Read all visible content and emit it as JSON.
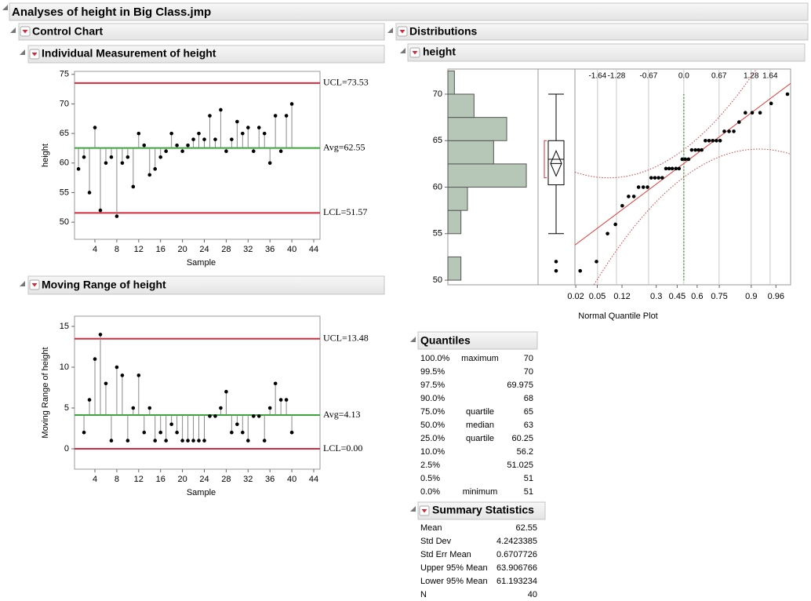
{
  "title": "Analyses of height in Big Class.jmp",
  "control_chart": {
    "title": "Control Chart",
    "individual": {
      "type": "control_chart",
      "title": "Individual Measurement of height",
      "x_label": "Sample",
      "y_label": "height",
      "x": [
        1,
        2,
        3,
        4,
        5,
        6,
        7,
        8,
        9,
        10,
        11,
        12,
        13,
        14,
        15,
        16,
        17,
        18,
        19,
        20,
        21,
        22,
        23,
        24,
        25,
        26,
        27,
        28,
        29,
        30,
        31,
        32,
        33,
        34,
        35,
        36,
        37,
        38,
        39,
        40
      ],
      "values": [
        59,
        61,
        55,
        66,
        52,
        60,
        61,
        51,
        60,
        61,
        56,
        65,
        63,
        58,
        59,
        61,
        62,
        65,
        63,
        62,
        63,
        64,
        65,
        64,
        68,
        64,
        69,
        62,
        64,
        67,
        65,
        66,
        62,
        66,
        65,
        60,
        68,
        62,
        68,
        70
      ],
      "xlim": [
        0.27,
        45.15
      ],
      "xticks": [
        4,
        8,
        12,
        16,
        20,
        24,
        28,
        32,
        36,
        40,
        44
      ],
      "ylim": [
        47.1,
        75.5
      ],
      "yticks": [
        50,
        55,
        60,
        65,
        70,
        75
      ],
      "ucl": {
        "value": 73.53,
        "label": "UCL=73.53"
      },
      "center": {
        "value": 62.55,
        "label": "Avg=62.55"
      },
      "lcl": {
        "value": 51.57,
        "label": "LCL=51.57"
      },
      "limit_color": "#d42a3e",
      "center_color": "#3ba53b",
      "point_color": "#000000"
    },
    "moving_range": {
      "type": "control_chart",
      "title": "Moving Range of height",
      "x_label": "Sample",
      "y_label": "Moving Range of height",
      "x": [
        1,
        2,
        3,
        4,
        5,
        6,
        7,
        8,
        9,
        10,
        11,
        12,
        13,
        14,
        15,
        16,
        17,
        18,
        19,
        20,
        21,
        22,
        23,
        24,
        25,
        26,
        27,
        28,
        29,
        30,
        31,
        32,
        33,
        34,
        35,
        36,
        37,
        38,
        39,
        40
      ],
      "values": [
        null,
        2,
        6,
        11,
        14,
        8,
        1,
        10,
        9,
        1,
        5,
        9,
        2,
        5,
        1,
        2,
        1,
        3,
        2,
        1,
        1,
        1,
        1,
        1,
        4,
        4,
        5,
        7,
        2,
        3,
        2,
        1,
        4,
        4,
        1,
        5,
        8,
        6,
        6,
        2
      ],
      "xlim": [
        0.27,
        45.15
      ],
      "xticks": [
        4,
        8,
        12,
        16,
        20,
        24,
        28,
        32,
        36,
        40,
        44
      ],
      "ylim": [
        -2.5,
        16.25
      ],
      "yticks": [
        0,
        5,
        10,
        15
      ],
      "ucl": {
        "value": 13.48,
        "label": "UCL=13.48"
      },
      "center": {
        "value": 4.13,
        "label": "Avg=4.13"
      },
      "lcl": {
        "value": 0,
        "label": "LCL=0.00"
      },
      "limit_color": "#d42a3e",
      "center_color": "#3ba53b",
      "point_color": "#000000"
    }
  },
  "distributions": {
    "title": "Distributions",
    "variable": "height",
    "histogram": {
      "type": "histogram",
      "bins": [
        50,
        52.5,
        55,
        57.5,
        60,
        62.5,
        65,
        67.5,
        70,
        72.5
      ],
      "counts": [
        2,
        0,
        2,
        3,
        12,
        7,
        9,
        4,
        1
      ],
      "ylim": [
        49.5,
        72.7
      ],
      "yticks": [
        50,
        55,
        60,
        65,
        70
      ],
      "color": "#b7c7b7",
      "edge_color": "#555555"
    },
    "box_plot": {
      "type": "box_plot",
      "whisker_low": 55,
      "q1": 60.25,
      "median": 63,
      "q3": 65,
      "whisker_high": 70,
      "outliers": [
        51,
        52
      ],
      "shortest_half": [
        61,
        65
      ],
      "bracket_color": "#d42a3e"
    },
    "quantile_plot": {
      "type": "normal_quantile_plot",
      "x_label": "Normal Quantile Plot",
      "x": [
        -1.97,
        -1.66,
        -1.45,
        -1.3,
        -1.17,
        -1.05,
        -0.95,
        -0.86,
        -0.77,
        -0.69,
        -0.62,
        -0.55,
        -0.48,
        -0.41,
        -0.34,
        -0.28,
        -0.22,
        -0.15,
        -0.09,
        -0.03,
        0.03,
        0.09,
        0.15,
        0.22,
        0.28,
        0.34,
        0.41,
        0.48,
        0.55,
        0.62,
        0.69,
        0.77,
        0.86,
        0.95,
        1.05,
        1.17,
        1.3,
        1.45,
        1.66,
        1.97
      ],
      "values": [
        51,
        52,
        55,
        56,
        58,
        59,
        59,
        60,
        60,
        60,
        61,
        61,
        61,
        61,
        62,
        62,
        62,
        62,
        62,
        63,
        63,
        63,
        64,
        64,
        64,
        64,
        65,
        65,
        65,
        65,
        65,
        66,
        66,
        66,
        67,
        68,
        68,
        68,
        69,
        70
      ],
      "xlim": [
        -2.07,
        2.03
      ],
      "top_ticks": [
        -1.64,
        -1.28,
        -0.67,
        {
          "value": 0,
          "label": "0.0"
        },
        0.67,
        1.28,
        1.64
      ],
      "bottom_ticks": [
        {
          "value": -2.054,
          "label": "0.02"
        },
        {
          "value": -1.645,
          "label": "0.05"
        },
        {
          "value": -1.175,
          "label": "0.12"
        },
        {
          "value": -0.524,
          "label": "0.3"
        },
        {
          "value": -0.126,
          "label": "0.45"
        },
        {
          "value": 0.253,
          "label": "0.6"
        },
        {
          "value": 0.674,
          "label": "0.75"
        },
        {
          "value": 1.282,
          "label": "0.9"
        },
        {
          "value": 1.751,
          "label": "0.96"
        }
      ],
      "fit_color": "#e03a3a",
      "reference_color": "#3ba53b",
      "point_color": "#000000"
    },
    "quantiles": {
      "title": "Quantiles",
      "rows": [
        {
          "percent": "100.0%",
          "name": "maximum",
          "value": 70
        },
        {
          "percent": "99.5%",
          "value": 70
        },
        {
          "percent": "97.5%",
          "value": 69.975
        },
        {
          "percent": "90.0%",
          "value": 68
        },
        {
          "percent": "75.0%",
          "name": "quartile",
          "value": 65
        },
        {
          "percent": "50.0%",
          "name": "median",
          "value": 63
        },
        {
          "percent": "25.0%",
          "name": "quartile",
          "value": 60.25
        },
        {
          "percent": "10.0%",
          "value": 56.2
        },
        {
          "percent": "2.5%",
          "value": 51.025
        },
        {
          "percent": "0.5%",
          "value": 51
        },
        {
          "percent": "0.0%",
          "name": "minimum",
          "value": 51
        }
      ]
    },
    "summary": {
      "title": "Summary Statistics",
      "rows": [
        {
          "name": "Mean",
          "value": 62.55
        },
        {
          "name": "Std Dev",
          "value": 4.2423385
        },
        {
          "name": "Std Err Mean",
          "value": 0.6707726
        },
        {
          "name": "Upper 95% Mean",
          "value": 63.906766
        },
        {
          "name": "Lower 95% Mean",
          "value": 61.193234
        },
        {
          "name": "N",
          "value": 40
        }
      ]
    }
  }
}
